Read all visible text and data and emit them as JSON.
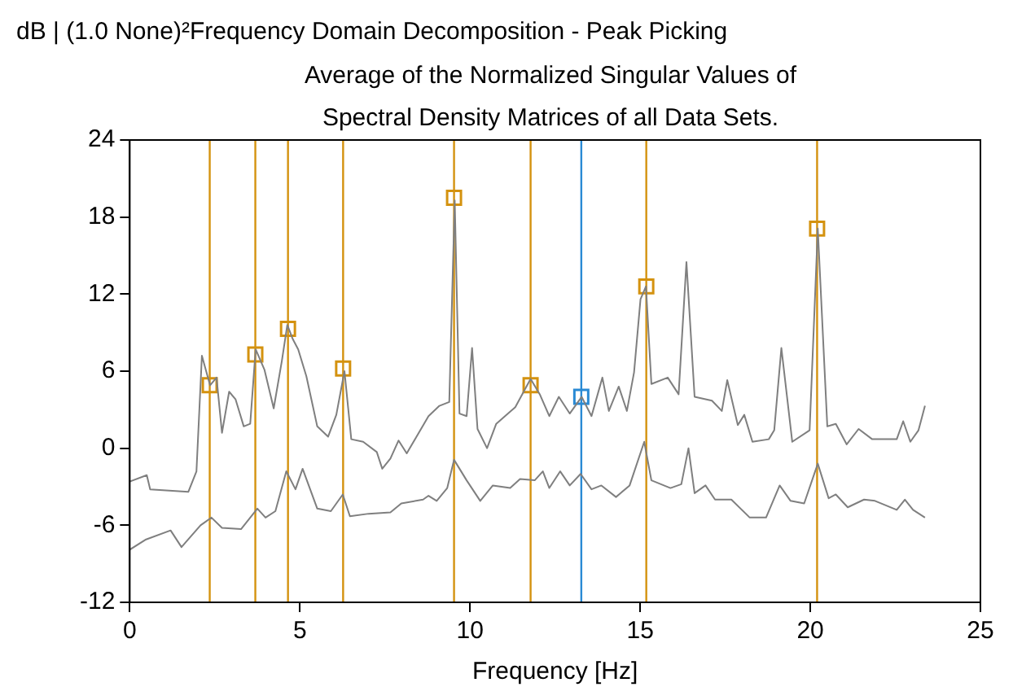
{
  "chart_data": {
    "type": "line",
    "title": "Frequency Domain Decomposition - Peak Picking",
    "subtitle": "Average of the Normalized Singular Values of\nSpectral Density Matrices of all Data Sets.",
    "xlabel": "Frequency [Hz]",
    "ylabel": "dB | (1.0 None)²",
    "xlim": [
      0,
      25
    ],
    "xticks": [
      0,
      5,
      10,
      15,
      20,
      25
    ],
    "ylim": [
      -12,
      24
    ],
    "yticks": [
      -12,
      -6,
      0,
      6,
      12,
      18,
      24
    ],
    "grid": false,
    "legend": false,
    "series": [
      {
        "type": "line",
        "color": "#7f7f7f",
        "marker": "none",
        "x": [
          0,
          0.5,
          0.6,
          1.72,
          1.96,
          2.12,
          2.36,
          2.55,
          2.71,
          2.92,
          3.11,
          3.35,
          3.54,
          3.7,
          3.96,
          4.23,
          4.47,
          4.63,
          4.79,
          4.95,
          5.19,
          5.51,
          5.83,
          6.07,
          6.31,
          6.51,
          6.86,
          7.26,
          7.42,
          7.66,
          7.9,
          8.14,
          8.78,
          9.1,
          9.39,
          9.55,
          9.69,
          9.9,
          10.06,
          10.22,
          10.5,
          10.77,
          11.33,
          11.78,
          12.05,
          12.33,
          12.61,
          12.93,
          13.28,
          13.57,
          13.89,
          14.08,
          14.37,
          14.61,
          14.82,
          15.01,
          15.17,
          15.33,
          15.81,
          16.13,
          16.36,
          16.6,
          17.11,
          17.4,
          17.56,
          17.87,
          18.06,
          18.3,
          18.78,
          18.94,
          19.15,
          19.47,
          19.98,
          20.22,
          20.5,
          20.75,
          21.07,
          21.42,
          21.82,
          22.54,
          22.73,
          22.94,
          23.18,
          23.37
        ],
        "values": [
          -2.6,
          -2.1,
          -3.2,
          -3.4,
          -1.8,
          7.2,
          4.9,
          5.5,
          1.2,
          4.4,
          3.8,
          1.7,
          1.9,
          7.7,
          6.1,
          3.1,
          6.8,
          9.6,
          8.5,
          7.7,
          5.6,
          1.7,
          0.9,
          2.6,
          6.0,
          0.7,
          0.5,
          -0.3,
          -1.6,
          -0.8,
          0.6,
          -0.4,
          2.5,
          3.3,
          3.6,
          19.3,
          2.7,
          2.5,
          7.8,
          1.5,
          0.0,
          1.9,
          3.2,
          5.4,
          4.2,
          2.5,
          4.0,
          2.7,
          4.0,
          2.5,
          5.5,
          2.9,
          4.8,
          2.9,
          5.9,
          11.6,
          12.6,
          5.0,
          5.5,
          4.2,
          14.5,
          4.0,
          3.7,
          2.9,
          5.3,
          1.8,
          2.6,
          0.5,
          0.7,
          1.4,
          7.8,
          0.5,
          1.4,
          17.1,
          1.7,
          1.9,
          0.3,
          1.5,
          0.7,
          0.7,
          2.1,
          0.5,
          1.4,
          3.3
        ]
      },
      {
        "type": "line",
        "color": "#7f7f7f",
        "marker": "none",
        "x": [
          0,
          0.48,
          1.2,
          1.52,
          2.08,
          2.4,
          2.71,
          3.27,
          3.75,
          3.99,
          4.28,
          4.6,
          4.87,
          5.08,
          5.51,
          5.91,
          6.26,
          6.47,
          7.02,
          7.66,
          7.98,
          8.62,
          8.78,
          9.02,
          9.33,
          9.53,
          9.9,
          10.3,
          10.67,
          11.18,
          11.47,
          11.9,
          12.14,
          12.33,
          12.65,
          12.93,
          13.25,
          13.57,
          13.86,
          14.29,
          14.69,
          15.12,
          15.33,
          15.89,
          16.21,
          16.42,
          16.6,
          16.92,
          17.2,
          17.68,
          18.22,
          18.7,
          19.1,
          19.42,
          19.82,
          20.22,
          20.54,
          20.75,
          21.1,
          21.58,
          21.9,
          22.54,
          22.78,
          23.02,
          23.37
        ],
        "values": [
          -7.9,
          -7.1,
          -6.4,
          -7.7,
          -6.0,
          -5.4,
          -6.2,
          -6.3,
          -4.7,
          -5.4,
          -4.9,
          -1.8,
          -3.2,
          -1.6,
          -4.7,
          -4.9,
          -3.6,
          -5.3,
          -5.1,
          -5.0,
          -4.3,
          -4.0,
          -3.7,
          -4.1,
          -3.1,
          -0.9,
          -2.5,
          -4.1,
          -2.9,
          -3.1,
          -2.4,
          -2.5,
          -1.8,
          -3.1,
          -1.8,
          -2.9,
          -2.0,
          -3.2,
          -2.9,
          -3.8,
          -2.9,
          0.5,
          -2.5,
          -3.1,
          -2.8,
          0.0,
          -3.5,
          -2.9,
          -4.0,
          -4.0,
          -5.4,
          -5.4,
          -2.9,
          -4.1,
          -4.3,
          -1.2,
          -3.9,
          -3.6,
          -4.6,
          -4.0,
          -4.1,
          -4.8,
          -4.0,
          -4.8,
          -5.4
        ]
      },
      {
        "type": "scatter",
        "color": "#d4920f",
        "marker": "square",
        "x": [
          2.35,
          3.69,
          4.65,
          6.27,
          9.53,
          11.78,
          15.18,
          20.2
        ],
        "values": [
          4.9,
          7.3,
          9.3,
          6.2,
          19.5,
          4.9,
          12.6,
          17.1
        ]
      },
      {
        "type": "scatter",
        "color": "#2a8ad4",
        "marker": "square",
        "x": [
          13.27
        ],
        "values": [
          4.0
        ]
      }
    ],
    "ref_lines": [
      {
        "axis": "x",
        "value": 2.35,
        "color": "#d4920f"
      },
      {
        "axis": "x",
        "value": 3.69,
        "color": "#d4920f"
      },
      {
        "axis": "x",
        "value": 4.65,
        "color": "#d4920f"
      },
      {
        "axis": "x",
        "value": 6.27,
        "color": "#d4920f"
      },
      {
        "axis": "x",
        "value": 9.53,
        "color": "#d4920f"
      },
      {
        "axis": "x",
        "value": 11.78,
        "color": "#d4920f"
      },
      {
        "axis": "x",
        "value": 13.27,
        "color": "#2a8ad4"
      },
      {
        "axis": "x",
        "value": 15.18,
        "color": "#d4920f"
      },
      {
        "axis": "x",
        "value": 20.2,
        "color": "#d4920f"
      }
    ]
  }
}
